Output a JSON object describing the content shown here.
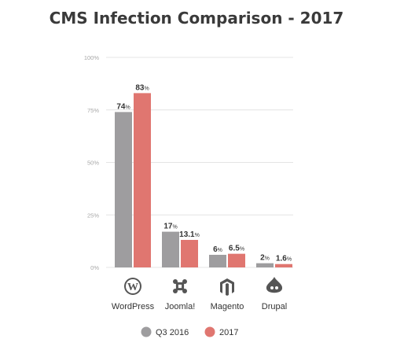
{
  "chart_data": {
    "type": "bar",
    "title": "CMS Infection Comparison - 2017",
    "categories": [
      "WordPress",
      "Joomla!",
      "Magento",
      "Drupal"
    ],
    "category_icons": [
      "wordpress-icon",
      "joomla-icon",
      "magento-icon",
      "drupal-icon"
    ],
    "series": [
      {
        "name": "Q3 2016",
        "values": [
          74,
          17,
          6,
          2
        ],
        "labels": [
          "74",
          "17",
          "6",
          "2"
        ],
        "color": "#9e9d9f"
      },
      {
        "name": "2017",
        "values": [
          83,
          13.1,
          6.5,
          1.6
        ],
        "labels": [
          "83",
          "13.1",
          "6.5",
          "1.6"
        ],
        "color": "#e07670"
      }
    ],
    "value_unit": "%",
    "ylim": [
      0,
      100
    ],
    "yticks": [
      0,
      25,
      50,
      75,
      100
    ],
    "ytick_labels": [
      "0%",
      "25%",
      "50%",
      "75%",
      "100%"
    ],
    "grid": true,
    "legend_position": "bottom",
    "xlabel": "",
    "ylabel": ""
  }
}
